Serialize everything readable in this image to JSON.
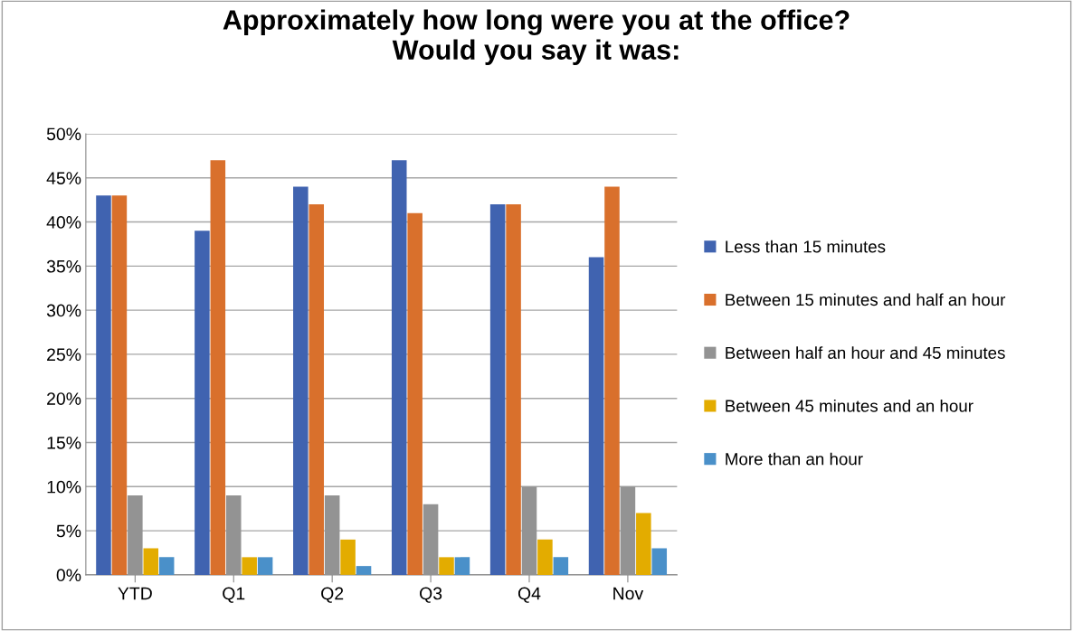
{
  "chart_data": {
    "type": "bar",
    "title": "Approximately how long were you at the office?\nWould you say it was:",
    "categories": [
      "YTD",
      "Q1",
      "Q2",
      "Q3",
      "Q4",
      "Nov"
    ],
    "series": [
      {
        "name": "Less than 15 minutes",
        "color": "#4063b0",
        "values": [
          43,
          39,
          44,
          47,
          42,
          36
        ]
      },
      {
        "name": "Between 15 minutes and half an hour",
        "color": "#d9702c",
        "values": [
          43,
          47,
          42,
          41,
          42,
          44
        ]
      },
      {
        "name": "Between half an hour and 45 minutes",
        "color": "#939393",
        "values": [
          9,
          9,
          9,
          8,
          10,
          10
        ]
      },
      {
        "name": "Between 45 minutes and an hour",
        "color": "#e3ac00",
        "values": [
          3,
          2,
          4,
          2,
          4,
          7
        ]
      },
      {
        "name": "More than an hour",
        "color": "#4a90c9",
        "values": [
          2,
          2,
          1,
          2,
          2,
          3
        ]
      }
    ],
    "ylim": [
      0,
      50
    ],
    "yticks": [
      {
        "value": 0,
        "label": "0%"
      },
      {
        "value": 5,
        "label": "5%"
      },
      {
        "value": 10,
        "label": "10%"
      },
      {
        "value": 15,
        "label": "15%"
      },
      {
        "value": 20,
        "label": "20%"
      },
      {
        "value": 25,
        "label": "25%"
      },
      {
        "value": 30,
        "label": "30%"
      },
      {
        "value": 35,
        "label": "35%"
      },
      {
        "value": 40,
        "label": "40%"
      },
      {
        "value": 45,
        "label": "45%"
      },
      {
        "value": 50,
        "label": "50%"
      }
    ],
    "grid": "y",
    "legend": "right"
  }
}
